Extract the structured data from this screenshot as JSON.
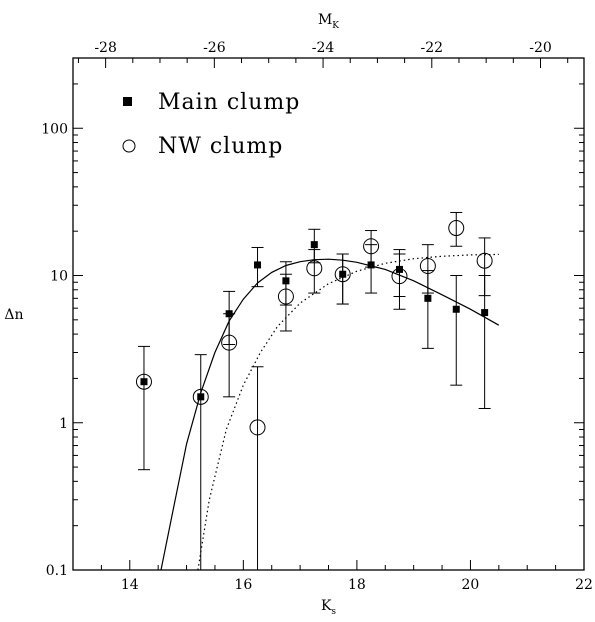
{
  "chart_data": {
    "type": "scatter",
    "xlabel": "K",
    "xlabel_sub": "s",
    "ylabel": "Δn",
    "top_xlabel": "M",
    "top_xlabel_sub": "K",
    "xlim": [
      13,
      22
    ],
    "ylim": [
      0.1,
      300
    ],
    "yscale": "log",
    "top_xlim": [
      -28.6,
      -19.2
    ],
    "x_ticks": [
      14,
      16,
      18,
      20,
      22
    ],
    "x_tick_labels": [
      "14",
      "16",
      "18",
      "20",
      "22"
    ],
    "y_ticks": [
      0.1,
      1,
      10,
      100
    ],
    "y_tick_labels": [
      "0.1",
      "1",
      "10",
      "100"
    ],
    "top_ticks": [
      -28,
      -26,
      -24,
      -22,
      -20
    ],
    "top_tick_labels": [
      "-28",
      "-26",
      "-24",
      "-22",
      "-20"
    ],
    "grid": false,
    "legend_position": "top-left",
    "series": [
      {
        "name": "Main clump",
        "marker": "filled-square",
        "points": [
          {
            "x": 14.25,
            "y": 1.9,
            "lo": 0.48,
            "hi": 3.3
          },
          {
            "x": 15.25,
            "y": 1.5,
            "lo": 0.1,
            "hi": 2.9
          },
          {
            "x": 15.75,
            "y": 5.5,
            "lo": 3.4,
            "hi": 7.8
          },
          {
            "x": 16.25,
            "y": 11.8,
            "lo": 8.4,
            "hi": 15.5
          },
          {
            "x": 16.75,
            "y": 9.2,
            "lo": 6.3,
            "hi": 12.4
          },
          {
            "x": 17.25,
            "y": 16.2,
            "lo": 12.2,
            "hi": 20.6
          },
          {
            "x": 17.75,
            "y": 10.2,
            "lo": 6.4,
            "hi": 14.0
          },
          {
            "x": 18.25,
            "y": 11.8,
            "lo": 7.6,
            "hi": 16.2
          },
          {
            "x": 18.75,
            "y": 11.0,
            "lo": 7.2,
            "hi": 15.0
          },
          {
            "x": 19.25,
            "y": 7.0,
            "lo": 3.2,
            "hi": 10.8
          },
          {
            "x": 19.75,
            "y": 5.9,
            "lo": 1.8,
            "hi": 10.0
          },
          {
            "x": 20.25,
            "y": 5.6,
            "lo": 1.25,
            "hi": 10.0
          }
        ]
      },
      {
        "name": "NW clump",
        "marker": "open-circle",
        "points": [
          {
            "x": 14.25,
            "y": 1.9,
            "lo": null,
            "hi": null
          },
          {
            "x": 15.25,
            "y": 1.5,
            "lo": null,
            "hi": null
          },
          {
            "x": 15.75,
            "y": 3.5,
            "lo": 1.5,
            "hi": 5.5
          },
          {
            "x": 16.25,
            "y": 0.93,
            "lo": 0.1,
            "hi": 2.4
          },
          {
            "x": 16.75,
            "y": 7.2,
            "lo": 4.2,
            "hi": 10.2
          },
          {
            "x": 17.25,
            "y": 11.2,
            "lo": 7.6,
            "hi": 15.0
          },
          {
            "x": 17.75,
            "y": 10.2,
            "lo": 6.4,
            "hi": 14.0
          },
          {
            "x": 18.25,
            "y": 15.8,
            "lo": 11.4,
            "hi": 20.2
          },
          {
            "x": 18.75,
            "y": 9.9,
            "lo": 5.9,
            "hi": 14.0
          },
          {
            "x": 19.25,
            "y": 11.6,
            "lo": 7.6,
            "hi": 16.2
          },
          {
            "x": 19.75,
            "y": 21.0,
            "lo": 15.8,
            "hi": 26.8
          },
          {
            "x": 20.25,
            "y": 12.6,
            "lo": 7.3,
            "hi": 18.0
          }
        ]
      }
    ],
    "curves": [
      {
        "style": "solid",
        "points": [
          [
            14.55,
            0.1
          ],
          [
            14.8,
            0.3
          ],
          [
            15.0,
            0.72
          ],
          [
            15.25,
            1.6
          ],
          [
            15.5,
            3.0
          ],
          [
            15.75,
            4.9
          ],
          [
            16.0,
            6.9
          ],
          [
            16.25,
            8.9
          ],
          [
            16.5,
            10.5
          ],
          [
            16.75,
            11.7
          ],
          [
            17.0,
            12.4
          ],
          [
            17.25,
            12.8
          ],
          [
            17.5,
            12.9
          ],
          [
            17.75,
            12.7
          ],
          [
            18.0,
            12.3
          ],
          [
            18.5,
            11.0
          ],
          [
            19.0,
            9.2
          ],
          [
            19.5,
            7.4
          ],
          [
            20.0,
            5.9
          ],
          [
            20.5,
            4.6
          ]
        ]
      },
      {
        "style": "dotted",
        "points": [
          [
            15.2,
            0.1
          ],
          [
            15.4,
            0.3
          ],
          [
            15.7,
            0.9
          ],
          [
            16.0,
            1.8
          ],
          [
            16.3,
            3.0
          ],
          [
            16.6,
            4.5
          ],
          [
            17.0,
            6.5
          ],
          [
            17.5,
            8.8
          ],
          [
            18.0,
            10.7
          ],
          [
            18.5,
            12.1
          ],
          [
            19.0,
            13.0
          ],
          [
            19.5,
            13.5
          ],
          [
            20.0,
            13.8
          ],
          [
            20.5,
            13.9
          ]
        ]
      }
    ]
  }
}
